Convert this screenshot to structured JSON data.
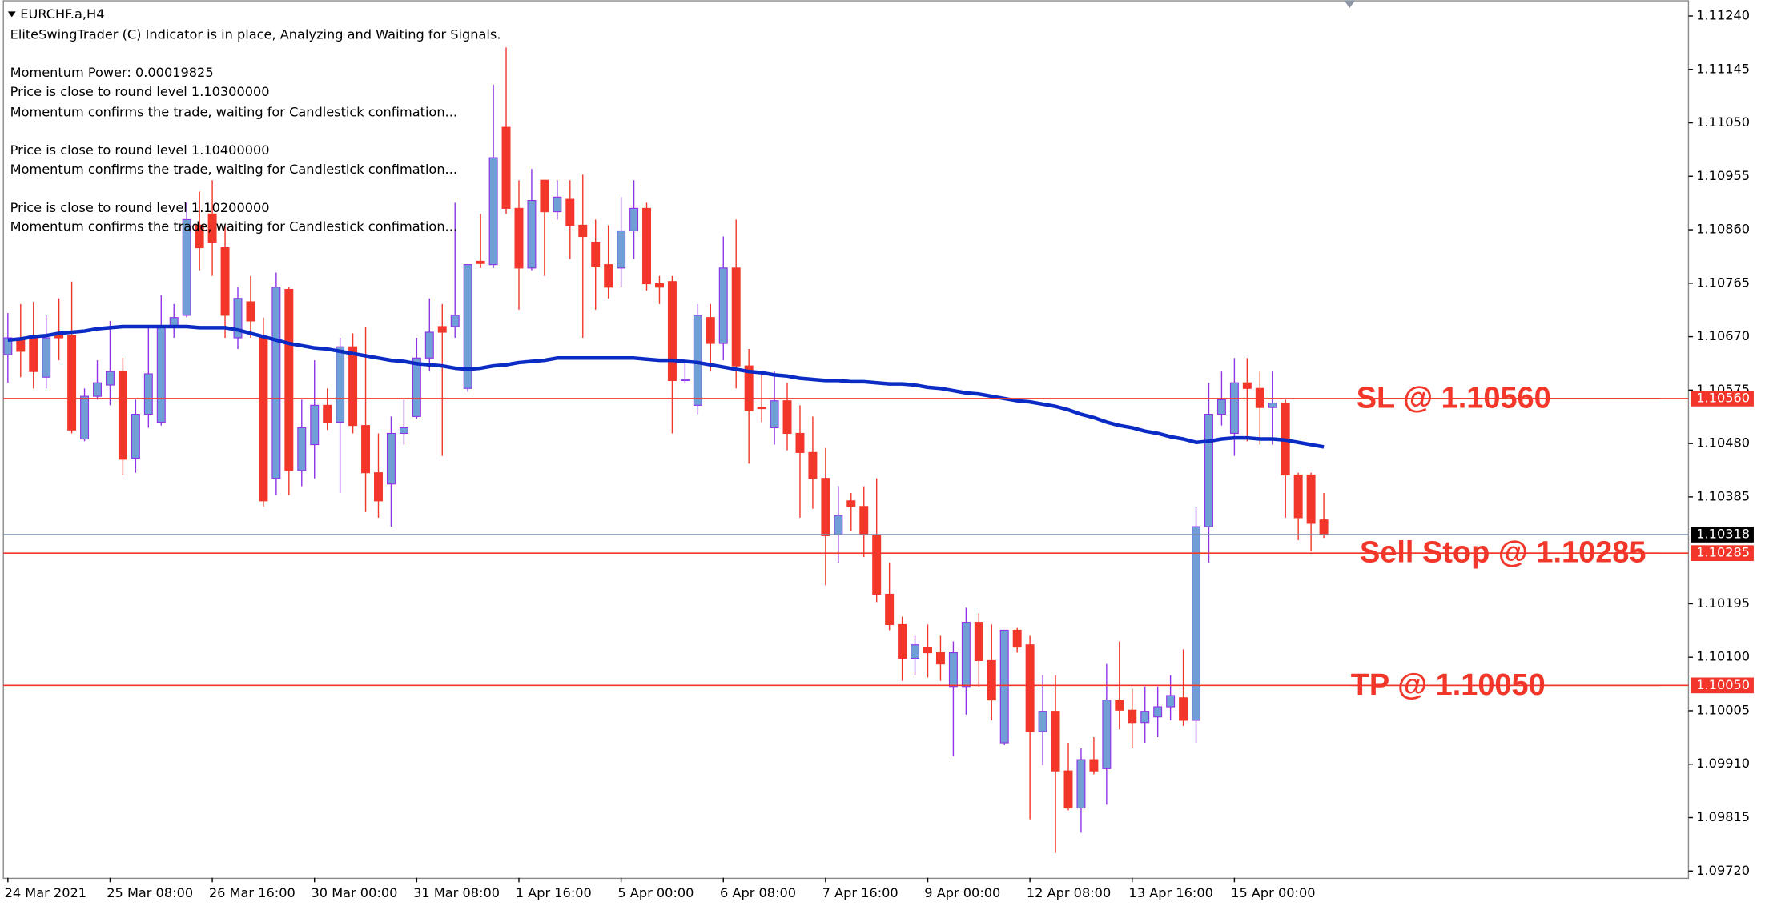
{
  "chart_data": {
    "type": "candlestick",
    "title": "EURCHF.a,H4",
    "annotations": [
      "EliteSwingTrader (C) Indicator is in place, Analyzing and Waiting for Signals.",
      "Momentum Power: 0.00019825",
      "Price is close to round level 1.10300000",
      "Momentum confirms the trade, waiting for Candlestick confimation...",
      "Price is close to round level 1.10400000",
      "Momentum confirms the trade, waiting for Candlestick confimation...",
      "Price is close to round level 1.10200000",
      "Momentum confirms the trade, waiting for Candlestick confimation..."
    ],
    "categories": [
      "24 Mar 2021",
      null,
      null,
      null,
      null,
      null,
      null,
      null,
      "25 Mar 08:00",
      null,
      null,
      null,
      null,
      null,
      null,
      null,
      "26 Mar 16:00",
      null,
      null,
      null,
      null,
      null,
      null,
      null,
      "30 Mar 00:00",
      null,
      null,
      null,
      null,
      null,
      null,
      null,
      "31 Mar 08:00",
      null,
      null,
      null,
      null,
      null,
      null,
      null,
      "1 Apr 16:00",
      null,
      null,
      null,
      null,
      null,
      null,
      null,
      "5 Apr 00:00",
      null,
      null,
      null,
      null,
      null,
      null,
      null,
      "6 Apr 08:00",
      null,
      null,
      null,
      null,
      null,
      null,
      null,
      "7 Apr 16:00",
      null,
      null,
      null,
      null,
      null,
      null,
      null,
      "9 Apr 00:00",
      null,
      null,
      null,
      null,
      null,
      null,
      null,
      "12 Apr 08:00",
      null,
      null,
      null,
      null,
      null,
      null,
      null,
      "13 Apr 16:00",
      null,
      null,
      null,
      null,
      null,
      null,
      null,
      "15 Apr 00:00",
      null,
      null,
      null,
      null,
      null,
      null,
      null
    ],
    "open": [
      1.10638,
      1.10668,
      1.10672,
      1.10598,
      1.10676,
      1.10672,
      1.10488,
      1.10564,
      1.10584,
      1.10608,
      1.10454,
      1.10532,
      1.10518,
      1.10688,
      1.10708,
      1.10868,
      1.10888,
      1.10828,
      1.10668,
      1.10732,
      1.10668,
      1.10418,
      1.10754,
      1.10432,
      1.10478,
      1.10548,
      1.10518,
      1.10652,
      1.10512,
      1.10428,
      1.10408,
      1.10498,
      1.10528,
      1.10632,
      1.10688,
      1.10688,
      1.10578,
      1.10804,
      1.10798,
      1.11042,
      1.10898,
      1.10792,
      1.10948,
      1.10892,
      1.10914,
      1.10868,
      1.10838,
      1.10798,
      1.10792,
      1.10858,
      1.10898,
      1.10764,
      1.10768,
      1.10592,
      1.10548,
      1.10704,
      1.10658,
      1.10792,
      1.10618,
      1.10544,
      1.10508,
      1.10556,
      1.10498,
      1.10464,
      1.10418,
      1.10318,
      1.10378,
      1.10368,
      1.10318,
      1.10212,
      1.10158,
      1.10098,
      1.10118,
      1.10108,
      1.10048,
      1.10048,
      1.10162,
      1.10094,
      1.09948,
      1.10148,
      1.10122,
      1.09968,
      1.10004,
      1.09898,
      1.09832,
      1.09918,
      1.09902,
      1.10024,
      1.10006,
      1.09984,
      1.09994,
      1.10012,
      1.10028,
      1.09988,
      1.10332,
      1.10532,
      1.10498,
      1.10588,
      1.10578,
      1.10544,
      1.10552,
      1.10424,
      1.10424,
      1.10344
    ],
    "high": [
      1.10712,
      1.10728,
      1.10732,
      1.10708,
      1.10738,
      1.10768,
      1.10578,
      1.10628,
      1.10698,
      1.10632,
      1.10558,
      1.10688,
      1.10744,
      1.10728,
      1.10908,
      1.10928,
      1.10948,
      1.10868,
      1.10758,
      1.10778,
      1.10704,
      1.10784,
      1.10758,
      1.10558,
      1.10628,
      1.10578,
      1.10668,
      1.10676,
      1.10688,
      1.10498,
      1.10528,
      1.10558,
      1.10668,
      1.10738,
      1.10728,
      1.10908,
      1.10798,
      1.10888,
      1.11118,
      1.11184,
      1.10948,
      1.10968,
      1.10948,
      1.10948,
      1.10948,
      1.10958,
      1.10878,
      1.10868,
      1.10918,
      1.10948,
      1.10908,
      1.10778,
      1.10778,
      1.10628,
      1.10728,
      1.10728,
      1.10848,
      1.10878,
      1.10648,
      1.10608,
      1.10608,
      1.10588,
      1.10548,
      1.10528,
      1.10472,
      1.10404,
      1.10392,
      1.10404,
      1.10418,
      1.10268,
      1.10172,
      1.10138,
      1.10158,
      1.10138,
      1.10128,
      1.10188,
      1.10178,
      1.10158,
      1.10148,
      1.10152,
      1.10138,
      1.10068,
      1.10068,
      1.09948,
      1.09938,
      1.09958,
      1.10088,
      1.10128,
      1.10044,
      1.10048,
      1.10048,
      1.10068,
      1.10114,
      1.10368,
      1.10588,
      1.10608,
      1.10632,
      1.10632,
      1.10608,
      1.10608,
      1.10558,
      1.10428,
      1.10428,
      1.10392
    ],
    "low": [
      1.10588,
      1.10598,
      1.10578,
      1.10578,
      1.10628,
      1.10498,
      1.10484,
      1.10558,
      1.10548,
      1.10424,
      1.10428,
      1.10508,
      1.10512,
      1.10668,
      1.10704,
      1.10788,
      1.10778,
      1.10668,
      1.10648,
      1.10668,
      1.10368,
      1.10388,
      1.10388,
      1.10404,
      1.10418,
      1.10504,
      1.10392,
      1.10498,
      1.10358,
      1.10348,
      1.10332,
      1.10478,
      1.10524,
      1.10608,
      1.10458,
      1.10668,
      1.10572,
      1.10792,
      1.10792,
      1.10888,
      1.10718,
      1.10788,
      1.10778,
      1.10878,
      1.10808,
      1.10668,
      1.10718,
      1.10738,
      1.10758,
      1.10808,
      1.10752,
      1.10728,
      1.10498,
      1.10588,
      1.10532,
      1.10608,
      1.10628,
      1.10578,
      1.10444,
      1.10518,
      1.10478,
      1.10468,
      1.10348,
      1.10364,
      1.10228,
      1.10268,
      1.10324,
      1.10278,
      1.10198,
      1.10148,
      1.10058,
      1.10068,
      1.10064,
      1.10058,
      1.09924,
      1.09998,
      1.10048,
      1.09988,
      1.09944,
      1.10108,
      1.09812,
      1.09908,
      1.09752,
      1.09828,
      1.09788,
      1.09892,
      1.09838,
      1.09972,
      1.09938,
      1.09948,
      1.09958,
      1.09988,
      1.09978,
      1.09948,
      1.10268,
      1.10512,
      1.10458,
      1.10484,
      1.10478,
      1.10478,
      1.10348,
      1.10308,
      1.10288,
      1.10312
    ],
    "close": [
      1.10668,
      1.10644,
      1.10608,
      1.10668,
      1.10668,
      1.10504,
      1.10564,
      1.10588,
      1.10608,
      1.10452,
      1.10532,
      1.10604,
      1.10688,
      1.10704,
      1.10878,
      1.10828,
      1.10838,
      1.10708,
      1.10738,
      1.10698,
      1.10378,
      1.10758,
      1.10432,
      1.10508,
      1.10548,
      1.10518,
      1.10652,
      1.10512,
      1.10428,
      1.10378,
      1.10498,
      1.10508,
      1.10632,
      1.10678,
      1.10678,
      1.10708,
      1.10798,
      1.108,
      1.10988,
      1.10898,
      1.10792,
      1.10912,
      1.10892,
      1.10918,
      1.10868,
      1.10848,
      1.10794,
      1.10758,
      1.10858,
      1.10898,
      1.10764,
      1.10758,
      1.10592,
      1.10594,
      1.10708,
      1.10658,
      1.10792,
      1.10618,
      1.10538,
      1.10542,
      1.10556,
      1.10498,
      1.10464,
      1.10418,
      1.10316,
      1.10352,
      1.10368,
      1.10318,
      1.10212,
      1.10158,
      1.10098,
      1.10122,
      1.10108,
      1.10088,
      1.10108,
      1.10162,
      1.10094,
      1.10024,
      1.10148,
      1.10118,
      1.09968,
      1.10004,
      1.09898,
      1.09832,
      1.09918,
      1.09898,
      1.10024,
      1.10006,
      1.09984,
      1.10004,
      1.10012,
      1.10032,
      1.09988,
      1.10332,
      1.10532,
      1.10558,
      1.10588,
      1.10578,
      1.10544,
      1.10552,
      1.10424,
      1.10348,
      1.10338,
      1.10318
    ],
    "up_color": "#6f9fd6",
    "up_border": "#8e33e6",
    "down_color": "#f2372a",
    "moving_average": {
      "color": "#0a2bc4",
      "values": [
        1.10664,
        1.10666,
        1.1067,
        1.10672,
        1.10676,
        1.10678,
        1.1068,
        1.10684,
        1.10686,
        1.10688,
        1.10688,
        1.10688,
        1.10688,
        1.10688,
        1.10688,
        1.10686,
        1.10686,
        1.10686,
        1.10682,
        1.10676,
        1.1067,
        1.10664,
        1.10658,
        1.10654,
        1.1065,
        1.10648,
        1.10644,
        1.1064,
        1.10636,
        1.10632,
        1.10628,
        1.10626,
        1.10622,
        1.1062,
        1.10618,
        1.10614,
        1.10612,
        1.10614,
        1.10618,
        1.1062,
        1.10624,
        1.10626,
        1.10628,
        1.10632,
        1.10632,
        1.10632,
        1.10632,
        1.10632,
        1.10632,
        1.10632,
        1.1063,
        1.10628,
        1.10628,
        1.10626,
        1.10624,
        1.1062,
        1.10616,
        1.10612,
        1.10608,
        1.10606,
        1.10602,
        1.106,
        1.10596,
        1.10594,
        1.10592,
        1.10592,
        1.1059,
        1.1059,
        1.10588,
        1.10586,
        1.10586,
        1.10584,
        1.1058,
        1.10578,
        1.10574,
        1.1057,
        1.10568,
        1.10564,
        1.1056,
        1.10556,
        1.10554,
        1.1055,
        1.10546,
        1.1054,
        1.10532,
        1.10526,
        1.10518,
        1.10512,
        1.10508,
        1.10502,
        1.10498,
        1.10492,
        1.10488,
        1.10482,
        1.10484,
        1.10488,
        1.1049,
        1.1049,
        1.10488,
        1.10488,
        1.10486,
        1.10482,
        1.10478,
        1.10474
      ]
    },
    "levels": [
      {
        "text": "SL @ 1.10560",
        "value": 1.1056,
        "label": "1.10560",
        "color": "#f2372a"
      },
      {
        "text": "Sell Stop @ 1.10285",
        "value": 1.10285,
        "label": "1.10285",
        "color": "#f2372a"
      },
      {
        "text": "TP @ 1.10050",
        "value": 1.1005,
        "label": "1.10050",
        "color": "#f2372a"
      }
    ],
    "current_price": {
      "value": 1.10318,
      "label": "1.10318",
      "color": "#7b8aa8"
    },
    "ylim": [
      1.09708,
      1.11268
    ],
    "yticks": [
      {
        "value": 1.1124,
        "label": "1.11240"
      },
      {
        "value": 1.11145,
        "label": "1.11145"
      },
      {
        "value": 1.1105,
        "label": "1.11050"
      },
      {
        "value": 1.10955,
        "label": "1.10955"
      },
      {
        "value": 1.1086,
        "label": "1.10860"
      },
      {
        "value": 1.10765,
        "label": "1.10765"
      },
      {
        "value": 1.1067,
        "label": "1.10670"
      },
      {
        "value": 1.10575,
        "label": "1.10575"
      },
      {
        "value": 1.1048,
        "label": "1.10480"
      },
      {
        "value": 1.10385,
        "label": "1.10385"
      },
      {
        "value": 1.10195,
        "label": "1.10195"
      },
      {
        "value": 1.101,
        "label": "1.10100"
      },
      {
        "value": 1.10005,
        "label": "1.10005"
      },
      {
        "value": 1.0991,
        "label": "1.09910"
      },
      {
        "value": 1.09815,
        "label": "1.09815"
      },
      {
        "value": 1.0972,
        "label": "1.09720"
      }
    ],
    "grid": false
  }
}
